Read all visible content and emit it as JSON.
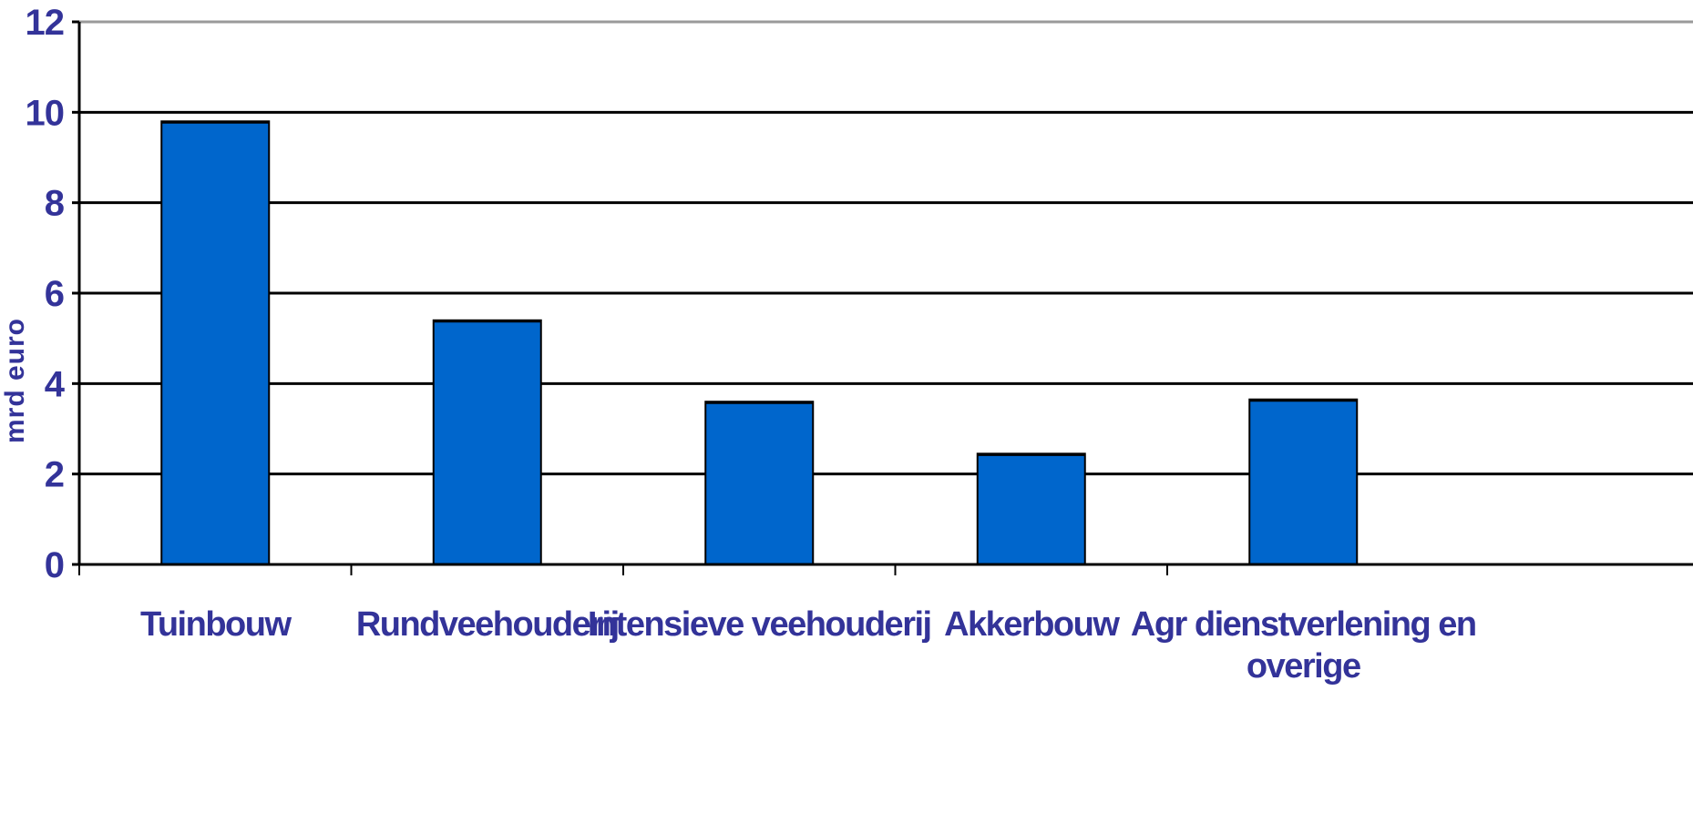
{
  "chart_data": {
    "type": "bar",
    "title": "",
    "xlabel": "",
    "ylabel": "mrd euro",
    "ylim": [
      0,
      12
    ],
    "yticks": [
      0,
      2,
      4,
      6,
      8,
      10,
      12
    ],
    "grid": true,
    "legend": "none",
    "categories": [
      [
        "Tuinbouw"
      ],
      [
        "Rundveehouderij"
      ],
      [
        "Intensieve veehouderij"
      ],
      [
        "Akkerbouw"
      ],
      [
        "Agr dienstverlening en",
        "overige"
      ]
    ],
    "series": [
      {
        "values": [
          9.8,
          5.4,
          3.6,
          2.45,
          3.65
        ]
      }
    ]
  },
  "colors": {
    "bar_fill": "#0066CC",
    "bar_stroke": "#000000",
    "text": "#333399",
    "grid": "#000000"
  }
}
